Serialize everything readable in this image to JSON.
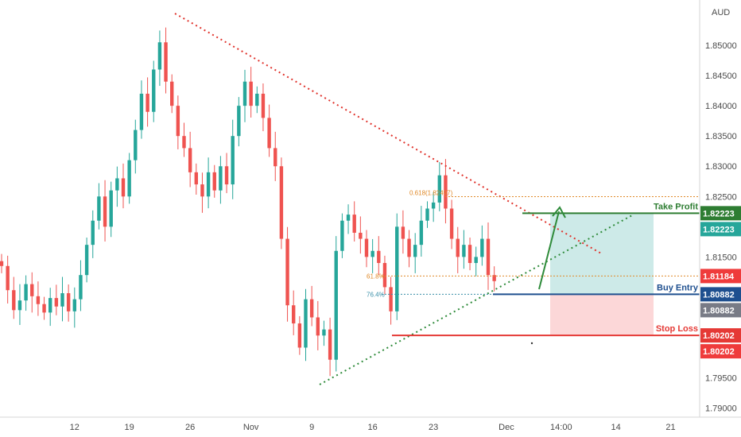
{
  "chart_data": {
    "type": "candlestick",
    "currency": "AUD",
    "ylim": [
      1.7885,
      1.8575
    ],
    "y_ticks": [
      "1.85000",
      "1.84500",
      "1.84000",
      "1.83500",
      "1.83000",
      "1.82500",
      "1.81500",
      "1.79500",
      "1.79000"
    ],
    "y_tick_values": [
      1.85,
      1.845,
      1.84,
      1.835,
      1.83,
      1.825,
      1.815,
      1.795,
      1.79
    ],
    "x_ticks": [
      {
        "label": "12",
        "index": 12
      },
      {
        "label": "19",
        "index": 21
      },
      {
        "label": "26",
        "index": 31
      },
      {
        "label": "Nov",
        "index": 41
      },
      {
        "label": "9",
        "index": 51
      },
      {
        "label": "16",
        "index": 61
      },
      {
        "label": "23",
        "index": 71
      },
      {
        "label": "Dec",
        "index": 83
      },
      {
        "label": "14:00",
        "index": 92
      },
      {
        "label": "14",
        "index": 101
      },
      {
        "label": "21",
        "index": 110
      }
    ],
    "closes": [
      1.8135,
      1.8095,
      1.8062,
      1.8078,
      1.8105,
      1.8085,
      1.8072,
      1.8058,
      1.8082,
      1.8068,
      1.809,
      1.806,
      1.808,
      1.812,
      1.817,
      1.821,
      1.825,
      1.82,
      1.826,
      1.828,
      1.825,
      1.831,
      1.836,
      1.842,
      1.839,
      1.846,
      1.8505,
      1.844,
      1.84,
      1.835,
      1.833,
      1.829,
      1.827,
      1.825,
      1.829,
      1.826,
      1.83,
      1.827,
      1.835,
      1.84,
      1.844,
      1.84,
      1.842,
      1.838,
      1.833,
      1.83,
      1.818,
      1.807,
      1.804,
      1.8,
      1.808,
      1.805,
      1.802,
      1.803,
      1.798,
      1.816,
      1.821,
      1.822,
      1.819,
      1.818,
      1.815,
      1.816,
      1.814,
      1.81,
      1.806,
      1.82,
      1.818,
      1.815,
      1.817,
      1.821,
      1.823,
      1.824,
      1.8285,
      1.823,
      1.818,
      1.815,
      1.817,
      1.814,
      1.815,
      1.818,
      1.812,
      1.811
    ],
    "series": [
      {
        "name": "up",
        "color": "#26a69a"
      },
      {
        "name": "down",
        "color": "#ef5350"
      }
    ],
    "price_tags": [
      {
        "label": "1.82223",
        "value": 1.82223,
        "color": "#2e7d32"
      },
      {
        "label": "1.82223",
        "value": 1.82223,
        "color": "#26a69a",
        "offset": 1
      },
      {
        "label": "1.81184",
        "value": 1.81184,
        "color": "#ef3b3b"
      },
      {
        "label": "1.80882",
        "value": 1.80882,
        "color": "#1e4f8f"
      },
      {
        "label": "1.80882",
        "value": 1.80882,
        "color": "#787b86",
        "offset": 1
      },
      {
        "label": "1.80202",
        "value": 1.80202,
        "color": "#e53935"
      },
      {
        "label": "1.80202",
        "value": 1.80202,
        "color": "#ef3b3b",
        "offset": 1
      }
    ],
    "annotations": {
      "take_profit": {
        "label": "Take Profit",
        "value": 1.82223,
        "color": "#2e7d32"
      },
      "buy_entry": {
        "label": "Buy Entry",
        "value": 1.80882,
        "color": "#1e4f8f"
      },
      "stop_loss": {
        "label": "Stop Loss",
        "value": 1.80202,
        "color": "#e53935"
      },
      "fib_618": {
        "label": "0.618(1.82497)",
        "value": 1.82497
      },
      "fib_618_short": {
        "label": "61.8%",
        "value": 1.81184
      },
      "fib_764": {
        "label": "76.4%",
        "value": 1.80882
      }
    },
    "colors": {
      "up": "#26a69a",
      "down": "#ef5350",
      "reward_zone": "#cdeae8",
      "risk_zone": "#fcd7d8",
      "trend": "#e0322b",
      "support": "#2e8b3a"
    }
  }
}
